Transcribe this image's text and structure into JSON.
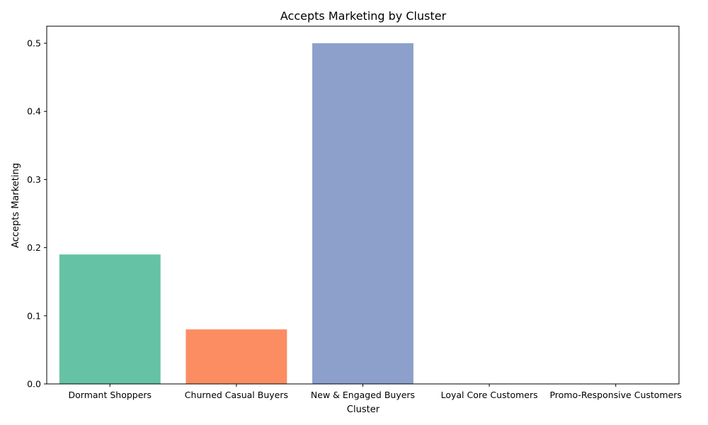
{
  "chart_data": {
    "type": "bar",
    "title": "Accepts Marketing by Cluster",
    "xlabel": "Cluster",
    "ylabel": "Accepts Marketing",
    "categories": [
      "Dormant Shoppers",
      "Churned Casual Buyers",
      "New & Engaged Buyers",
      "Loyal Core Customers",
      "Promo-Responsive Customers"
    ],
    "values": [
      0.19,
      0.08,
      0.5,
      0,
      0
    ],
    "colors": [
      "#66c2a5",
      "#fc8d62",
      "#8da0cb",
      "#e78ac3",
      "#a6d854"
    ],
    "ylim": [
      0,
      0.525
    ],
    "yticks": [
      0.0,
      0.1,
      0.2,
      0.3,
      0.4,
      0.5
    ],
    "ytick_labels": [
      "0.0",
      "0.1",
      "0.2",
      "0.3",
      "0.4",
      "0.5"
    ],
    "grid": false,
    "legend": "none"
  }
}
